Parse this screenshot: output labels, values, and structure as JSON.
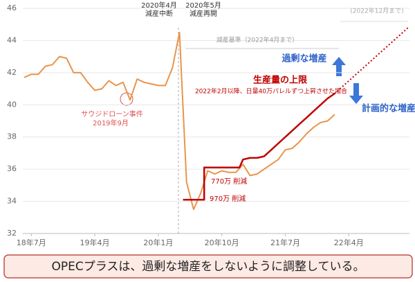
{
  "chart_data": {
    "type": "line",
    "xlim": [
      -1.2,
      53.6
    ],
    "ylim": [
      32,
      46
    ],
    "yticks": [
      32,
      34,
      36,
      38,
      40,
      42,
      44,
      46
    ],
    "xticks": [
      {
        "value": 0,
        "label": "18年7月"
      },
      {
        "value": 9,
        "label": "19年4月"
      },
      {
        "value": 18,
        "label": "20年1月"
      },
      {
        "value": 27,
        "label": "20年10月"
      },
      {
        "value": 36,
        "label": "21年7月"
      },
      {
        "value": 45,
        "label": "22年4月"
      }
    ],
    "grid": true,
    "series": [
      {
        "color": "#e8944a",
        "width": 2,
        "x": [
          -1,
          0,
          1,
          2,
          3,
          4,
          5,
          6,
          7,
          8,
          9,
          10,
          11,
          12,
          13,
          14,
          15,
          16,
          17,
          18,
          19,
          20,
          21,
          22,
          23,
          24,
          25,
          26,
          27,
          28,
          29,
          30,
          31,
          32,
          33,
          34,
          35,
          36,
          37,
          38,
          39,
          40,
          41,
          42,
          43
        ],
        "values": [
          41.7,
          41.9,
          41.9,
          42.4,
          42.5,
          43.0,
          42.9,
          42.0,
          42.0,
          41.4,
          40.9,
          41.0,
          41.5,
          41.2,
          41.4,
          40.3,
          41.6,
          41.4,
          41.3,
          41.2,
          41.2,
          42.3,
          44.5,
          35.2,
          33.5,
          34.5,
          35.9,
          35.7,
          35.9,
          35.8,
          35.8,
          36.3,
          35.6,
          35.7,
          36.0,
          36.3,
          36.6,
          37.2,
          37.3,
          37.7,
          38.2,
          38.6,
          38.9,
          39.0,
          39.4
        ]
      },
      {
        "color": "#c00000",
        "width": 2.5,
        "x": [
          21.5,
          24.5,
          24.5,
          29.5,
          30,
          31,
          32,
          33,
          34,
          35,
          36,
          37,
          38,
          39,
          40,
          41,
          42,
          43
        ],
        "values": [
          34.1,
          34.1,
          36.1,
          36.1,
          36.6,
          36.7,
          36.7,
          36.8,
          37.2,
          37.6,
          38.0,
          38.4,
          38.8,
          39.2,
          39.6,
          40.0,
          40.4,
          40.7
        ]
      },
      {
        "color": "#c00000",
        "width": 2,
        "dotted": true,
        "x": [
          43,
          53.4
        ],
        "values": [
          40.7,
          44.8
        ]
      }
    ],
    "annotations": [
      "2020年4月",
      "減産中断",
      "2020年5月",
      "減産再開",
      "(2022年12月まで)",
      "減産基準（2022年4月まで）",
      "過剰な増産",
      "生産量の上限",
      "2022年2月以降、日量40万バレルずつ上昇させた場合",
      "計画的な増産",
      "サウジドローン事件",
      "2019年9月",
      "770万 削減",
      "970万 削減"
    ],
    "caption": "OPECプラスは、過剰な増産をしないように調整している。"
  }
}
